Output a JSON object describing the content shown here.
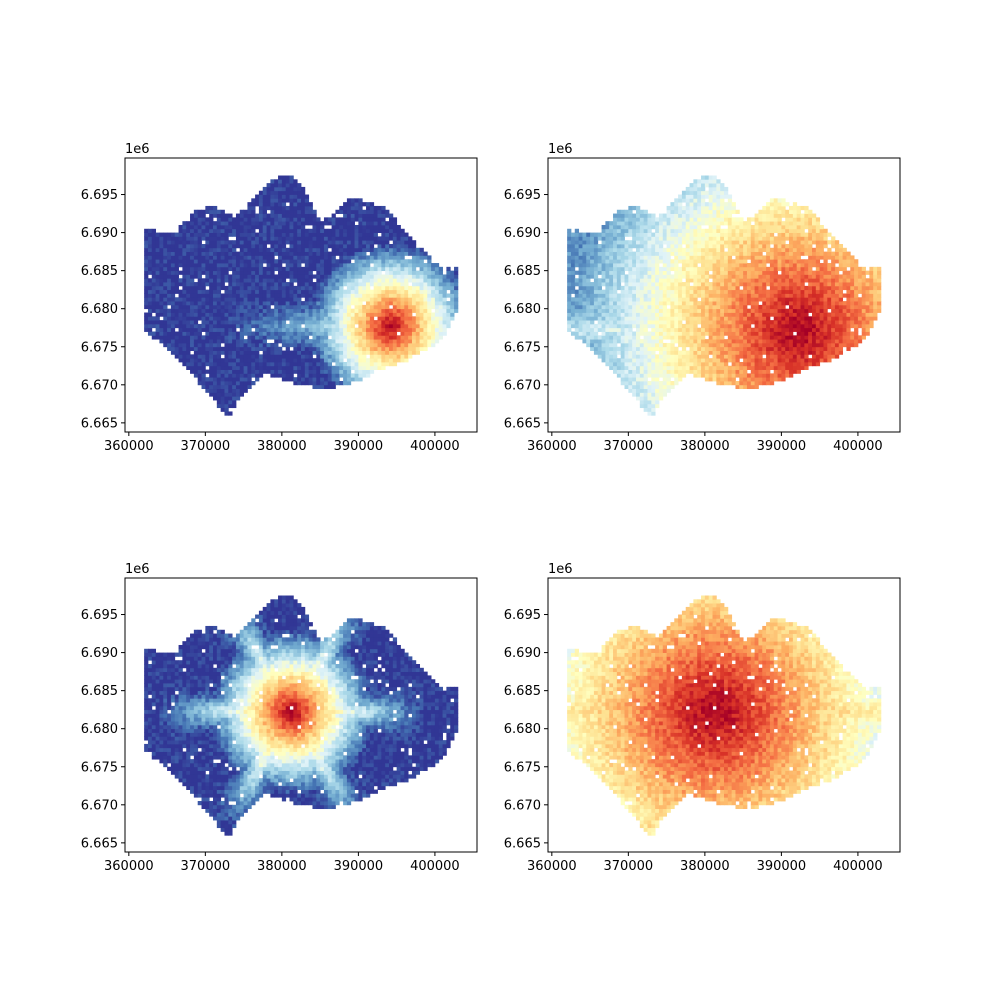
{
  "colors": {
    "colormap": "RdYlBu_r",
    "stops": [
      "#313695",
      "#4575b4",
      "#74add1",
      "#abd9e9",
      "#e0f3f8",
      "#ffffbf",
      "#fee090",
      "#fdae61",
      "#f46d43",
      "#d73027",
      "#a50026"
    ],
    "axis": "#000000",
    "background": "#ffffff"
  },
  "chart_data": [
    {
      "type": "heatmap",
      "colormap": "RdYlBu_r",
      "xlim": [
        359500,
        405500
      ],
      "ylim": [
        6663800,
        6699800
      ],
      "x_ticks": [
        360000,
        370000,
        380000,
        390000,
        400000
      ],
      "x_tick_labels": [
        "360000",
        "370000",
        "380000",
        "390000",
        "400000"
      ],
      "y_ticks": [
        6665000,
        6670000,
        6675000,
        6680000,
        6685000,
        6690000,
        6695000
      ],
      "y_tick_labels": [
        "6.665",
        "6.670",
        "6.675",
        "6.680",
        "6.685",
        "6.690",
        "6.695"
      ],
      "y_offset_label": "1e6",
      "grid": false,
      "hotspot": {
        "x": 394000,
        "y": 6677500,
        "radius": 11000,
        "ridge_dir": "east-west"
      },
      "background_level": 0.0
    },
    {
      "type": "heatmap",
      "colormap": "RdYlBu_r",
      "xlim": [
        359500,
        405500
      ],
      "ylim": [
        6663800,
        6699800
      ],
      "x_ticks": [
        360000,
        370000,
        380000,
        390000,
        400000
      ],
      "x_tick_labels": [
        "360000",
        "370000",
        "380000",
        "390000",
        "400000"
      ],
      "y_ticks": [
        6665000,
        6670000,
        6675000,
        6680000,
        6685000,
        6690000,
        6695000
      ],
      "y_tick_labels": [
        "6.665",
        "6.670",
        "6.675",
        "6.680",
        "6.685",
        "6.690",
        "6.695"
      ],
      "y_offset_label": "1e6",
      "grid": false,
      "hotspot": {
        "x": 392000,
        "y": 6677000,
        "radius": 30000,
        "ridge_dir": "east-west"
      },
      "background_level": 0.15
    },
    {
      "type": "heatmap",
      "colormap": "RdYlBu_r",
      "xlim": [
        359500,
        405500
      ],
      "ylim": [
        6663800,
        6699800
      ],
      "x_ticks": [
        360000,
        370000,
        380000,
        390000,
        400000
      ],
      "x_tick_labels": [
        "360000",
        "370000",
        "380000",
        "390000",
        "400000"
      ],
      "y_ticks": [
        6665000,
        6670000,
        6675000,
        6680000,
        6685000,
        6690000,
        6695000
      ],
      "y_tick_labels": [
        "6.665",
        "6.670",
        "6.675",
        "6.680",
        "6.685",
        "6.690",
        "6.695"
      ],
      "y_offset_label": "1e6",
      "grid": false,
      "hotspot": {
        "x": 381000,
        "y": 6682000,
        "radius": 11000,
        "ridge_dir": "radial"
      },
      "background_level": 0.0
    },
    {
      "type": "heatmap",
      "colormap": "RdYlBu_r",
      "xlim": [
        359500,
        405500
      ],
      "ylim": [
        6663800,
        6699800
      ],
      "x_ticks": [
        360000,
        370000,
        380000,
        390000,
        400000
      ],
      "x_tick_labels": [
        "360000",
        "370000",
        "380000",
        "390000",
        "400000"
      ],
      "y_ticks": [
        6665000,
        6670000,
        6675000,
        6680000,
        6685000,
        6690000,
        6695000
      ],
      "y_tick_labels": [
        "6.665",
        "6.670",
        "6.675",
        "6.680",
        "6.685",
        "6.690",
        "6.695"
      ],
      "y_offset_label": "1e6",
      "grid": false,
      "hotspot": {
        "x": 381000,
        "y": 6682000,
        "radius": 30000,
        "ridge_dir": "radial"
      },
      "background_level": 0.2
    }
  ]
}
